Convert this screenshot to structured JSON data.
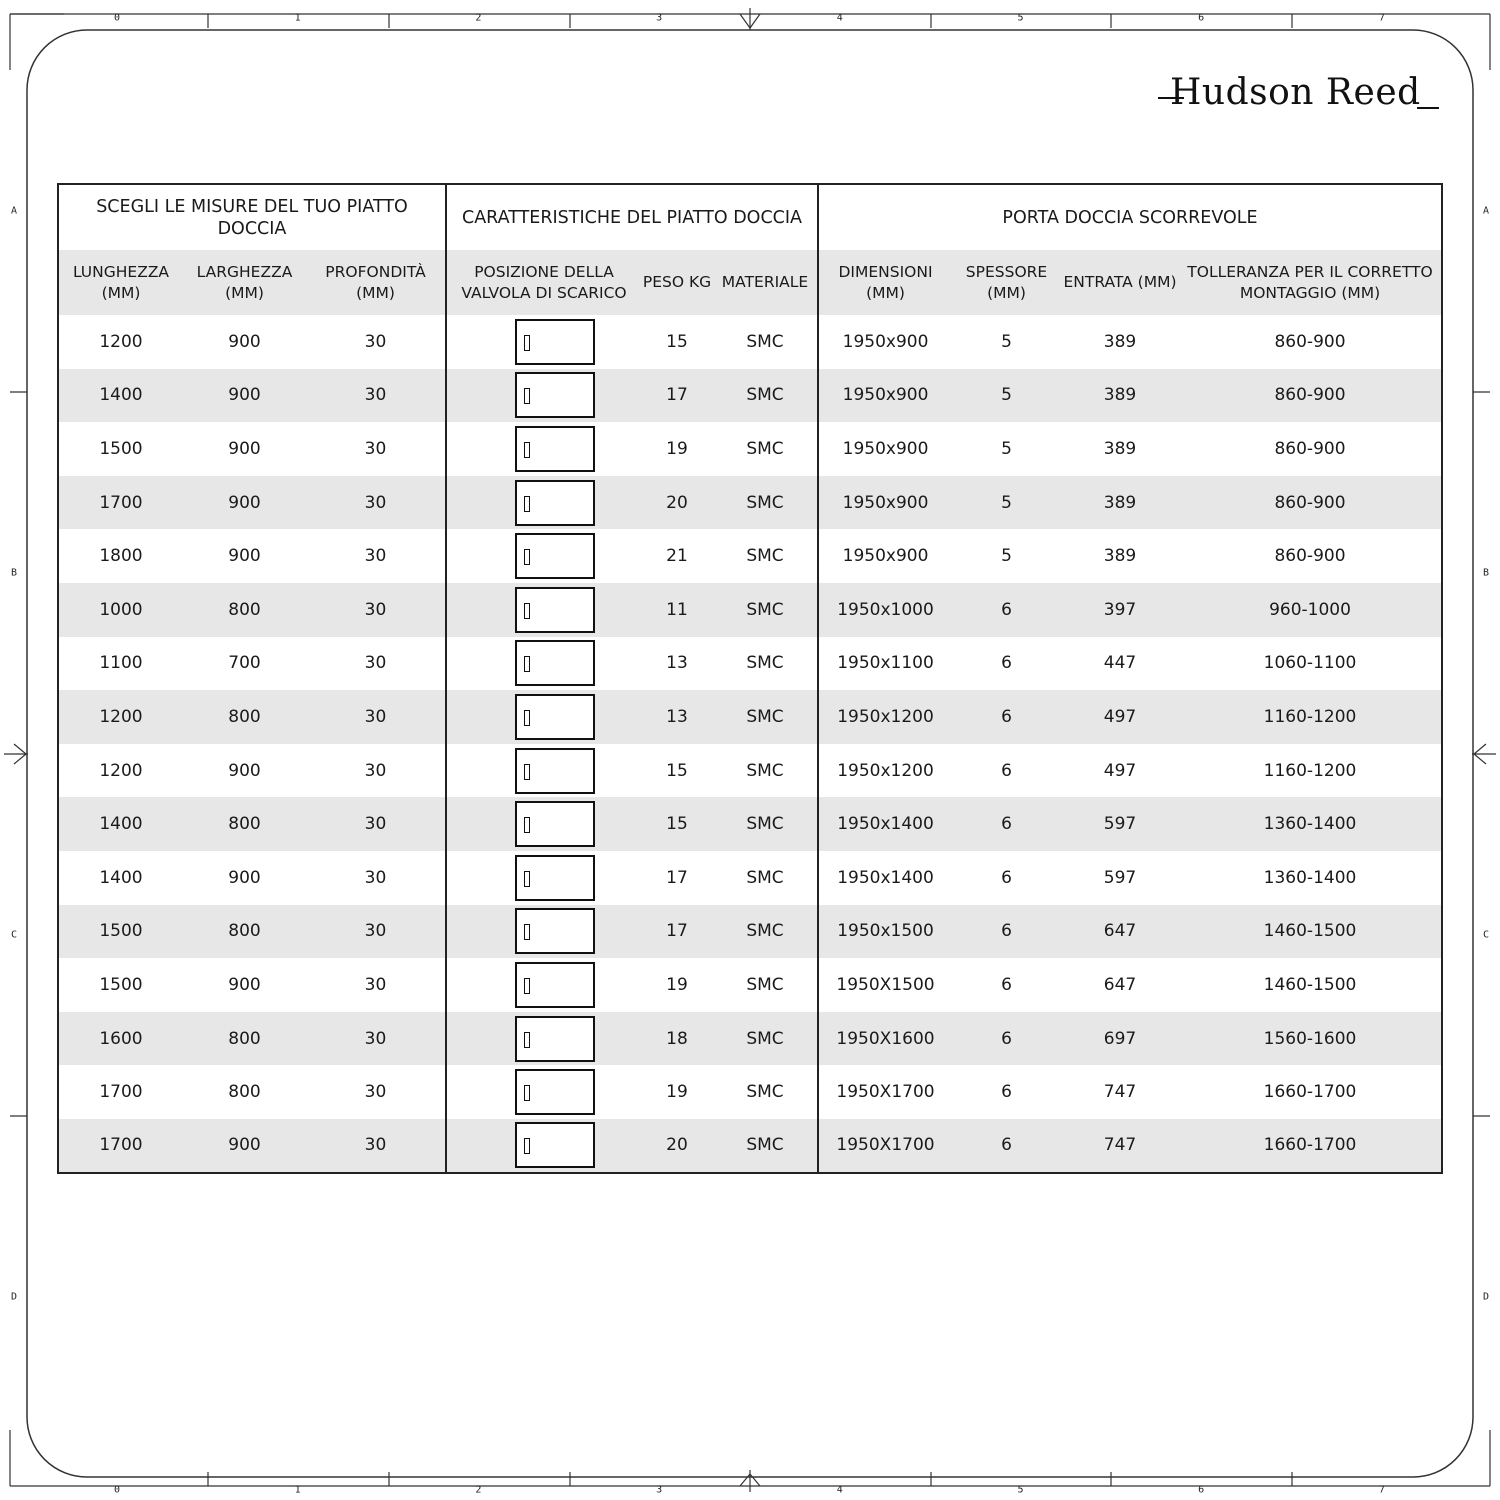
{
  "brand": {
    "logo_text": "Hudson Reed"
  },
  "frame": {
    "column_markers": [
      "0",
      "1",
      "2",
      "3",
      "4",
      "5",
      "6",
      "7"
    ],
    "row_markers": [
      "A",
      "B",
      "C",
      "D"
    ]
  },
  "table": {
    "group_headers": [
      "SCEGLI LE MISURE DEL TUO PIATTO DOCCIA",
      "CARATTERISTICHE DEL PIATTO DOCCIA",
      "PORTA DOCCIA SCORREVOLE"
    ],
    "columns": [
      "LUNGHEZZA (MM)",
      "LARGHEZZA (MM)",
      "PROFONDITÀ (MM)",
      "POSIZIONE DELLA VALVOLA DI SCARICO",
      "PESO KG",
      "MATERIALE",
      "DIMENSIONI (MM)",
      "SPESSORE (MM)",
      "ENTRATA (MM)",
      "TOLLERANZA PER IL CORRETTO MONTAGGIO (MM)"
    ],
    "valve_icon": "drain-valve-position-icon",
    "rows": [
      [
        "1200",
        "900",
        "30",
        "15",
        "SMC",
        "1950x900",
        "5",
        "389",
        "860-900"
      ],
      [
        "1400",
        "900",
        "30",
        "17",
        "SMC",
        "1950x900",
        "5",
        "389",
        "860-900"
      ],
      [
        "1500",
        "900",
        "30",
        "19",
        "SMC",
        "1950x900",
        "5",
        "389",
        "860-900"
      ],
      [
        "1700",
        "900",
        "30",
        "20",
        "SMC",
        "1950x900",
        "5",
        "389",
        "860-900"
      ],
      [
        "1800",
        "900",
        "30",
        "21",
        "SMC",
        "1950x900",
        "5",
        "389",
        "860-900"
      ],
      [
        "1000",
        "800",
        "30",
        "11",
        "SMC",
        "1950x1000",
        "6",
        "397",
        "960-1000"
      ],
      [
        "1100",
        "700",
        "30",
        "13",
        "SMC",
        "1950x1100",
        "6",
        "447",
        "1060-1100"
      ],
      [
        "1200",
        "800",
        "30",
        "13",
        "SMC",
        "1950x1200",
        "6",
        "497",
        "1160-1200"
      ],
      [
        "1200",
        "900",
        "30",
        "15",
        "SMC",
        "1950x1200",
        "6",
        "497",
        "1160-1200"
      ],
      [
        "1400",
        "800",
        "30",
        "15",
        "SMC",
        "1950x1400",
        "6",
        "597",
        "1360-1400"
      ],
      [
        "1400",
        "900",
        "30",
        "17",
        "SMC",
        "1950x1400",
        "6",
        "597",
        "1360-1400"
      ],
      [
        "1500",
        "800",
        "30",
        "17",
        "SMC",
        "1950x1500",
        "6",
        "647",
        "1460-1500"
      ],
      [
        "1500",
        "900",
        "30",
        "19",
        "SMC",
        "1950X1500",
        "6",
        "647",
        "1460-1500"
      ],
      [
        "1600",
        "800",
        "30",
        "18",
        "SMC",
        "1950X1600",
        "6",
        "697",
        "1560-1600"
      ],
      [
        "1700",
        "800",
        "30",
        "19",
        "SMC",
        "1950X1700",
        "6",
        "747",
        "1660-1700"
      ],
      [
        "1700",
        "900",
        "30",
        "20",
        "SMC",
        "1950X1700",
        "6",
        "747",
        "1660-1700"
      ]
    ]
  }
}
